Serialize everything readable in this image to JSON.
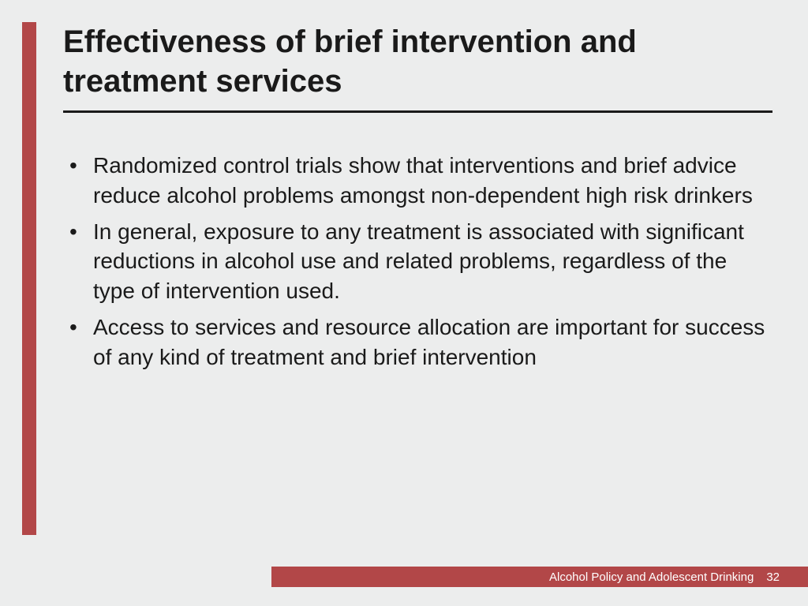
{
  "colors": {
    "background": "#eceded",
    "accent": "#b24748",
    "text": "#1a1a1a",
    "footer_text": "#ffffff"
  },
  "title": "Effectiveness of brief intervention and treatment services",
  "bullets": [
    "Randomized control trials show that interventions and brief advice reduce alcohol problems amongst non-dependent high risk drinkers",
    "In general, exposure to any treatment is associated with significant reductions in alcohol use and related problems, regardless of the type of intervention used.",
    "Access to services and resource allocation are important for success of any kind of treatment and brief intervention"
  ],
  "footer": {
    "label": "Alcohol Policy and Adolescent Drinking",
    "page_number": "32"
  }
}
